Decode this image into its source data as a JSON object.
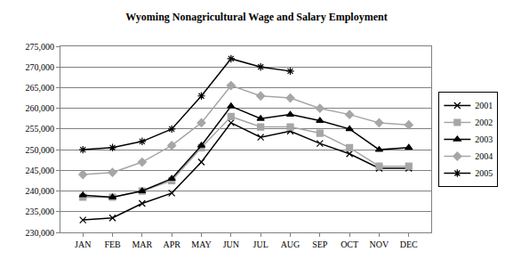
{
  "chart_data": {
    "type": "line",
    "title": "Wyoming Nonagricultural Wage and Salary Employment",
    "categories": [
      "JAN",
      "FEB",
      "MAR",
      "APR",
      "MAY",
      "JUN",
      "JUL",
      "AUG",
      "SEP",
      "OCT",
      "NOV",
      "DEC"
    ],
    "series": [
      {
        "name": "2001",
        "color": "#000000",
        "marker": "x",
        "values": [
          233000,
          233500,
          237000,
          239500,
          247000,
          256500,
          253000,
          254500,
          251500,
          249000,
          245500,
          245500
        ]
      },
      {
        "name": "2002",
        "color": "#a6a6a6",
        "marker": "square",
        "values": [
          238500,
          238500,
          240000,
          242500,
          250500,
          258000,
          255500,
          255500,
          254000,
          250500,
          246000,
          246000
        ]
      },
      {
        "name": "2003",
        "color": "#000000",
        "marker": "triangle",
        "values": [
          239000,
          238500,
          240000,
          243000,
          251000,
          260500,
          257500,
          258500,
          257000,
          255000,
          250000,
          250500
        ]
      },
      {
        "name": "2004",
        "color": "#a6a6a6",
        "marker": "diamond",
        "values": [
          244000,
          244500,
          247000,
          251000,
          256500,
          265500,
          263000,
          262500,
          260000,
          258500,
          256500,
          256000
        ]
      },
      {
        "name": "2005",
        "color": "#000000",
        "marker": "asterisk",
        "values": [
          250000,
          250500,
          252000,
          255000,
          263000,
          272000,
          270000,
          269000,
          null,
          null,
          null,
          null
        ]
      }
    ],
    "ylim": [
      230000,
      275000
    ],
    "yticks": [
      {
        "value": 230000,
        "label": "230,000"
      },
      {
        "value": 235000,
        "label": "235,000"
      },
      {
        "value": 240000,
        "label": "240,000"
      },
      {
        "value": 245000,
        "label": "245,000"
      },
      {
        "value": 250000,
        "label": "250,000"
      },
      {
        "value": 255000,
        "label": "255,000"
      },
      {
        "value": 260000,
        "label": "260,000"
      },
      {
        "value": 265000,
        "label": "265,000"
      },
      {
        "value": 270000,
        "label": "270,000"
      },
      {
        "value": 275000,
        "label": "275,000"
      }
    ],
    "grid": true,
    "legend": "right"
  }
}
